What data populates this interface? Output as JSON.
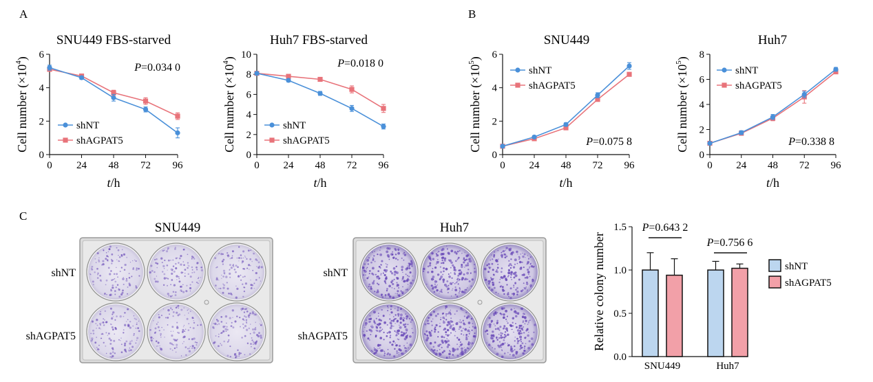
{
  "panels": {
    "a": "A",
    "b": "B",
    "c": "C"
  },
  "colors": {
    "shNT": "#4a90d9",
    "shAGPAT5": "#e8737a",
    "bar_shNT": "#bcd6ef",
    "bar_shAGPAT5": "#f2a0a8",
    "crystal_violet": "#6a4bb8"
  },
  "chart_data": [
    {
      "id": "A-left",
      "type": "line",
      "title": "SNU449 FBS-starved",
      "xlabel_italic": "t",
      "xlabel_unit": "/h",
      "ylabel_text": "Cell number (×10",
      "ylabel_exp": "4",
      "ylabel_close": ")",
      "x": [
        0,
        24,
        48,
        72,
        96
      ],
      "ylim": [
        0,
        6
      ],
      "yticks": [
        0,
        2,
        4,
        6
      ],
      "series": [
        {
          "name": "shNT",
          "values": [
            5.2,
            4.6,
            3.4,
            2.7,
            1.3
          ],
          "errors": [
            0.15,
            0.1,
            0.2,
            0.15,
            0.3
          ]
        },
        {
          "name": "shAGPAT5",
          "values": [
            5.1,
            4.7,
            3.7,
            3.2,
            2.3
          ],
          "errors": [
            0.1,
            0.1,
            0.15,
            0.2,
            0.2
          ]
        }
      ],
      "pvalue_label": "P",
      "pvalue": "=0.034 0",
      "legend": "lower-left"
    },
    {
      "id": "A-right",
      "type": "line",
      "title": "Huh7 FBS-starved",
      "xlabel_italic": "t",
      "xlabel_unit": "/h",
      "ylabel_text": "Cell number (×10",
      "ylabel_exp": "4",
      "ylabel_close": ")",
      "x": [
        0,
        24,
        48,
        72,
        96
      ],
      "ylim": [
        0,
        10
      ],
      "yticks": [
        0,
        2,
        4,
        6,
        8,
        10
      ],
      "series": [
        {
          "name": "shNT",
          "values": [
            8.1,
            7.4,
            6.1,
            4.6,
            2.8
          ],
          "errors": [
            0.15,
            0.15,
            0.2,
            0.3,
            0.25
          ]
        },
        {
          "name": "shAGPAT5",
          "values": [
            8.1,
            7.8,
            7.5,
            6.5,
            4.6
          ],
          "errors": [
            0.1,
            0.15,
            0.15,
            0.35,
            0.4
          ]
        }
      ],
      "pvalue_label": "P",
      "pvalue": "=0.018 0",
      "legend": "lower-left"
    },
    {
      "id": "B-left",
      "type": "line",
      "title": "SNU449",
      "xlabel_italic": "t",
      "xlabel_unit": "/h",
      "ylabel_text": "Cell number (×10",
      "ylabel_exp": "5",
      "ylabel_close": ")",
      "x": [
        0,
        24,
        48,
        72,
        96
      ],
      "ylim": [
        0,
        6
      ],
      "yticks": [
        0,
        2,
        4,
        6
      ],
      "series": [
        {
          "name": "shNT",
          "values": [
            0.5,
            1.05,
            1.8,
            3.55,
            5.3
          ],
          "errors": [
            0.05,
            0.08,
            0.1,
            0.15,
            0.2
          ]
        },
        {
          "name": "shAGPAT5",
          "values": [
            0.5,
            0.95,
            1.6,
            3.3,
            4.8
          ],
          "errors": [
            0.05,
            0.05,
            0.08,
            0.1,
            0.1
          ]
        }
      ],
      "pvalue_label": "P",
      "pvalue": "=0.075 8",
      "legend": "upper-left"
    },
    {
      "id": "B-right",
      "type": "line",
      "title": "Huh7",
      "xlabel_italic": "t",
      "xlabel_unit": "/h",
      "ylabel_text": "Cell number (×10",
      "ylabel_exp": "5",
      "ylabel_close": ")",
      "x": [
        0,
        24,
        48,
        72,
        96
      ],
      "ylim": [
        0,
        8
      ],
      "yticks": [
        0,
        2,
        4,
        6,
        8
      ],
      "series": [
        {
          "name": "shNT",
          "values": [
            0.9,
            1.75,
            3.0,
            4.8,
            6.8
          ],
          "errors": [
            0.05,
            0.15,
            0.2,
            0.25,
            0.15
          ]
        },
        {
          "name": "shAGPAT5",
          "values": [
            0.9,
            1.7,
            2.9,
            4.6,
            6.6
          ],
          "errors": [
            0.05,
            0.1,
            0.2,
            0.5,
            0.1
          ]
        }
      ],
      "pvalue_label": "P",
      "pvalue": "=0.338 8",
      "legend": "upper-left"
    },
    {
      "id": "C-bar",
      "type": "bar",
      "ylabel": "Relative colony number",
      "categories": [
        "SNU449",
        "Huh7"
      ],
      "ylim": [
        0,
        1.5
      ],
      "yticks": [
        "0.0",
        "0.5",
        "1.0",
        "1.5"
      ],
      "series": [
        {
          "name": "shNT",
          "values": [
            1.0,
            1.0
          ],
          "errors": [
            0.2,
            0.1
          ]
        },
        {
          "name": "shAGPAT5",
          "values": [
            0.94,
            1.02
          ],
          "errors": [
            0.19,
            0.05
          ]
        }
      ],
      "pvalues": [
        {
          "category": "SNU449",
          "label": "P",
          "value": "=0.643 2"
        },
        {
          "category": "Huh7",
          "label": "P",
          "value": "=0.756 6"
        }
      ],
      "legend": "right"
    }
  ],
  "plates": [
    {
      "title": "SNU449",
      "rows": [
        "shNT",
        "shAGPAT5"
      ],
      "density": [
        0.45,
        0.45
      ],
      "intensity": "light"
    },
    {
      "title": "Huh7",
      "rows": [
        "shNT",
        "shAGPAT5"
      ],
      "density": [
        0.7,
        0.75
      ],
      "intensity": "dark"
    }
  ]
}
